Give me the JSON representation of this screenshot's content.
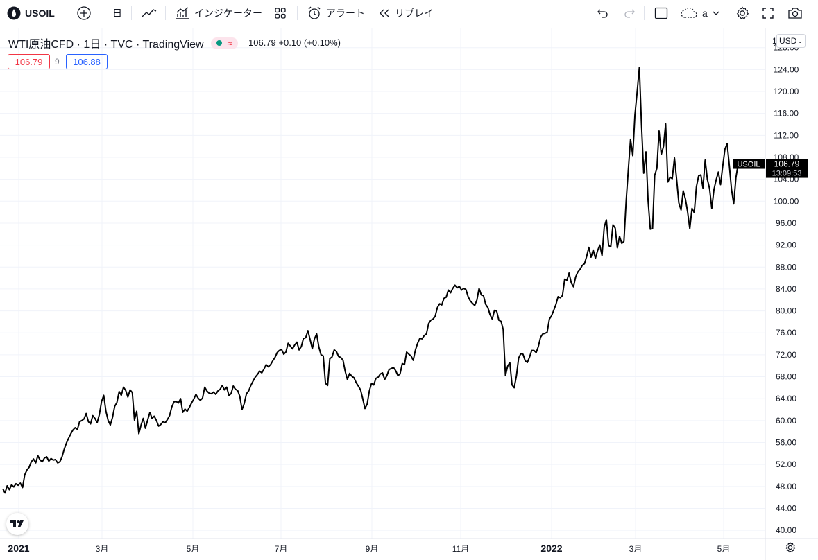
{
  "toolbar": {
    "symbol": "USOIL",
    "interval": "日",
    "indicators_label": "インジケーター",
    "alert_label": "アラート",
    "replay_label": "リプレイ",
    "layout_label": "a"
  },
  "legend": {
    "title": "WTI原油CFD · 1日 · TVC · TradingView",
    "last": "106.79",
    "change": "+0.10 (+0.10%)",
    "bid": "106.79",
    "spread": "9",
    "ask": "106.88",
    "currency": "USD",
    "truncated_price": "1"
  },
  "price_tag": {
    "symbol": "USOIL",
    "price": "106.79",
    "countdown": "13:09:53"
  },
  "colors": {
    "line": "#000000",
    "grid": "#f0f3fa",
    "bid_box": "#f23645",
    "ask_box": "#2962ff",
    "tag_bg": "#000000"
  },
  "chart_data": {
    "type": "line",
    "ylim": [
      38.5,
      131.5
    ],
    "yticks": [
      "128.00",
      "124.00",
      "120.00",
      "116.00",
      "112.00",
      "108.00",
      "104.00",
      "100.00",
      "96.00",
      "92.00",
      "88.00",
      "84.00",
      "80.00",
      "76.00",
      "72.00",
      "68.00",
      "64.00",
      "60.00",
      "56.00",
      "52.00",
      "48.00",
      "44.00",
      "40.00"
    ],
    "xticks": [
      "2021",
      "3月",
      "5月",
      "7月",
      "9月",
      "11月",
      "2022",
      "3月",
      "5月"
    ],
    "last_value": 106.79,
    "series": [
      {
        "values": [
          47.6,
          46.8,
          48.1,
          47.4,
          48.3,
          47.9,
          48.5,
          48.2,
          48.6,
          47.8,
          50.1,
          51.0,
          51.5,
          52.5,
          53.0,
          52.3,
          53.6,
          52.8,
          52.5,
          53.2,
          53.4,
          52.6,
          53.1,
          52.8,
          52.9,
          52.3,
          52.5,
          53.4,
          54.8,
          55.9,
          56.8,
          57.6,
          58.3,
          58.7,
          58.4,
          59.8,
          60.0,
          60.3,
          61.3,
          59.8,
          59.4,
          60.9,
          60.4,
          59.6,
          61.1,
          63.5,
          64.6,
          61.7,
          60.0,
          59.2,
          60.6,
          62.6,
          63.3,
          65.3,
          64.6,
          66.1,
          65.5,
          64.3,
          65.6,
          65.1,
          60.1,
          61.7,
          57.6,
          59.2,
          60.4,
          58.6,
          60.1,
          61.5,
          60.4,
          60.8,
          60.0,
          59.0,
          59.3,
          59.8,
          59.6,
          60.2,
          60.9,
          62.5,
          63.4,
          63.5,
          63.2,
          64.0,
          61.5,
          62.1,
          61.7,
          62.4,
          63.2,
          63.9,
          64.8,
          64.1,
          63.7,
          64.1,
          66.1,
          65.4,
          65.0,
          64.9,
          65.2,
          64.8,
          65.4,
          65.7,
          66.4,
          65.6,
          66.1,
          64.6,
          64.9,
          66.3,
          65.7,
          65.5,
          64.4,
          62.0,
          63.1,
          64.9,
          65.4,
          66.4,
          67.2,
          67.9,
          68.4,
          69.0,
          68.7,
          69.4,
          70.2,
          69.8,
          70.2,
          70.9,
          71.5,
          72.4,
          72.8,
          73.0,
          72.1,
          72.5,
          74.1,
          73.6,
          73.1,
          73.8,
          74.3,
          72.9,
          73.5,
          75.0,
          75.1,
          76.4,
          74.8,
          73.1,
          74.9,
          75.8,
          73.4,
          72.0,
          71.8,
          66.8,
          66.4,
          71.3,
          71.6,
          72.9,
          72.6,
          71.7,
          71.5,
          71.0,
          69.0,
          67.5,
          68.6,
          68.1,
          67.8,
          66.9,
          66.3,
          65.6,
          64.0,
          62.2,
          63.0,
          65.4,
          66.8,
          66.5,
          67.7,
          67.9,
          68.5,
          68.7,
          67.5,
          68.2,
          69.3,
          69.5,
          69.7,
          69.1,
          68.2,
          68.5,
          70.4,
          70.2,
          72.5,
          72.1,
          71.8,
          71.0,
          72.9,
          74.1,
          75.0,
          74.9,
          75.5,
          75.8,
          77.7,
          78.3,
          78.5,
          79.0,
          80.6,
          81.3,
          81.1,
          82.3,
          82.5,
          83.8,
          83.3,
          84.1,
          84.7,
          84.2,
          84.5,
          83.8,
          84.1,
          83.9,
          82.6,
          81.8,
          81.4,
          81.0,
          82.0,
          84.1,
          82.9,
          82.8,
          81.2,
          80.6,
          79.3,
          78.5,
          80.1,
          80.0,
          78.3,
          78.1,
          76.6,
          68.2,
          69.9,
          70.6,
          66.5,
          66.0,
          68.1,
          71.4,
          72.2,
          72.1,
          70.9,
          70.6,
          71.6,
          72.8,
          72.8,
          72.4,
          73.5,
          75.2,
          75.8,
          75.9,
          76.1,
          78.5,
          79.1,
          80.1,
          81.2,
          82.6,
          82.4,
          82.8,
          85.8,
          85.6,
          86.9,
          85.1,
          84.4,
          86.2,
          87.1,
          87.6,
          88.3,
          88.6,
          89.9,
          91.6,
          89.8,
          91.1,
          89.6,
          91.0,
          92.0,
          90.1,
          95.3,
          96.6,
          91.9,
          91.7,
          95.7,
          95.1,
          91.5,
          93.6,
          92.3,
          92.7,
          100.1,
          105.9,
          111.3,
          108.3,
          115.7,
          119.9,
          124.4,
          113.9,
          105.1,
          109.0,
          100.1,
          94.9,
          95.0,
          104.7,
          106.0,
          112.8,
          108.5,
          110.0,
          114.1,
          103.5,
          104.4,
          104.1,
          107.9,
          103.9,
          99.7,
          98.4,
          101.9,
          100.4,
          98.0,
          95.0,
          98.7,
          97.9,
          102.6,
          104.6,
          104.8,
          102.4,
          107.5,
          104.0,
          102.3,
          98.7,
          102.1,
          103.9,
          105.3,
          103.0,
          106.4,
          109.5,
          110.5,
          106.5,
          102.2,
          99.5,
          104.3,
          106.7,
          106.8
        ]
      }
    ]
  }
}
